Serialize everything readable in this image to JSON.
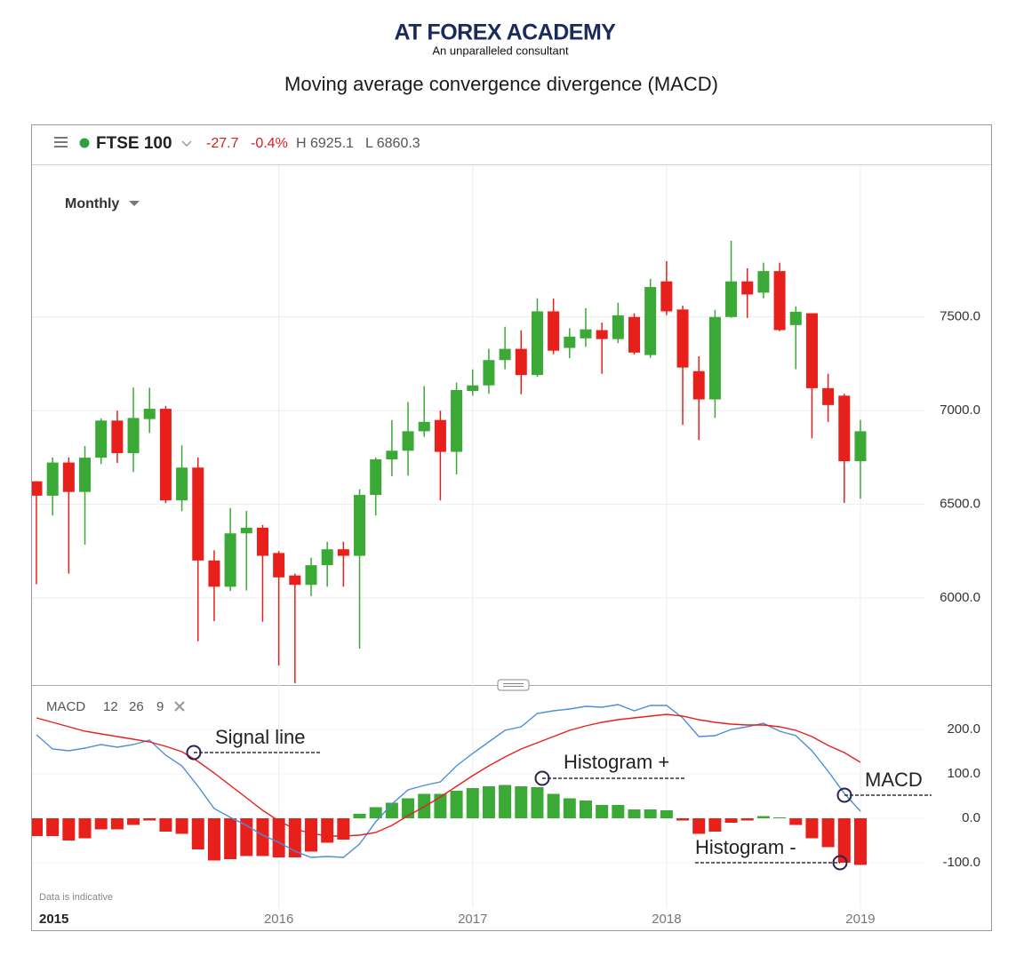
{
  "header": {
    "brand": "AT FOREX ACADEMY",
    "tagline": "An unparalleled consultant",
    "title": "Moving average convergence divergence (MACD)"
  },
  "chart_data": [
    {
      "type": "candlestick",
      "symbol": "FTSE 100",
      "change": "-27.7",
      "change_pct": "-0.4%",
      "day_high": "H 6925.1",
      "day_low": "L 6860.3",
      "period": "Monthly",
      "categories": [
        "2015",
        null,
        null,
        null,
        null,
        null,
        null,
        null,
        null,
        null,
        null,
        null,
        null,
        null,
        null,
        "2016",
        null,
        null,
        null,
        null,
        null,
        null,
        null,
        null,
        null,
        null,
        null,
        "2017",
        null,
        null,
        null,
        null,
        null,
        null,
        null,
        null,
        null,
        null,
        null,
        "2018",
        null,
        null,
        null,
        null,
        null,
        null,
        null,
        null,
        null,
        null,
        null,
        "2019"
      ],
      "open": [
        6623,
        6546,
        6723,
        6566,
        6749,
        6947,
        6773,
        6955,
        7010,
        6521,
        6696,
        6200,
        6060,
        6345,
        6375,
        6240,
        6120,
        6070,
        6175,
        6260,
        6225,
        6550,
        6740,
        6786,
        6890,
        6950,
        6780,
        7105,
        7135,
        7270,
        7330,
        7190,
        7530,
        7335,
        7386,
        7430,
        7382,
        7500,
        7297,
        7690,
        7540,
        7211,
        7060,
        7500,
        7690,
        7630,
        7745,
        7457,
        7520,
        7120,
        7080,
        6730
      ],
      "high": [
        6623,
        6750,
        6750,
        6811,
        6958,
        7000,
        7123,
        7122,
        7025,
        6815,
        6750,
        6254,
        6480,
        6465,
        6390,
        6250,
        6130,
        6215,
        6300,
        6300,
        6580,
        6750,
        6950,
        7046,
        7131,
        7000,
        7150,
        7220,
        7330,
        7448,
        7429,
        7600,
        7599,
        7440,
        7547,
        7470,
        7576,
        7520,
        7703,
        7798,
        7560,
        7290,
        7538,
        7907,
        7760,
        7790,
        7790,
        7557,
        7520,
        7197,
        7090,
        6950
      ],
      "low": [
        6073,
        6440,
        6130,
        6285,
        6715,
        6721,
        6672,
        6881,
        6506,
        6463,
        5769,
        5876,
        6038,
        6040,
        5873,
        5640,
        5545,
        6010,
        6060,
        6060,
        5730,
        6440,
        6650,
        6653,
        6860,
        6521,
        6660,
        7080,
        7090,
        7221,
        7088,
        7180,
        7301,
        7280,
        7340,
        7197,
        7360,
        7300,
        7282,
        7510,
        6923,
        6843,
        6961,
        7495,
        7495,
        7600,
        7424,
        7221,
        6852,
        6940,
        6507,
        6530
      ],
      "close": [
        6546,
        6723,
        6566,
        6749,
        6947,
        6773,
        6961,
        7010,
        6521,
        6696,
        6200,
        6060,
        6345,
        6375,
        6225,
        6110,
        6070,
        6175,
        6260,
        6225,
        6550,
        6740,
        6786,
        6890,
        6940,
        6780,
        7110,
        7135,
        7270,
        7330,
        7190,
        7530,
        7320,
        7395,
        7434,
        7382,
        7509,
        7310,
        7660,
        7530,
        7230,
        7060,
        7500,
        7690,
        7620,
        7745,
        7430,
        7528,
        7120,
        7030,
        6730,
        6890
      ],
      "up_color": "#3aa935",
      "down_color": "#e8201c",
      "ylim": [
        5540,
        8310
      ],
      "yticks": [
        {
          "value": 6000,
          "label": "6000.0"
        },
        {
          "value": 6500,
          "label": "6500.0"
        },
        {
          "value": 7000,
          "label": "7000.0"
        },
        {
          "value": 7500,
          "label": "7500.0"
        }
      ],
      "grid": true
    },
    {
      "type": "macd",
      "indicator": "MACD",
      "params": [
        12,
        26,
        9
      ],
      "note": "Data is indicative",
      "series": [
        {
          "name": "MACD",
          "color": "#4a8fd8",
          "values": [
            188,
            156,
            152,
            158,
            166,
            160,
            166,
            176,
            142,
            118,
            72,
            22,
            2,
            -16,
            -38,
            -54,
            -74,
            -88,
            -86,
            -88,
            -58,
            -8,
            32,
            64,
            74,
            82,
            118,
            146,
            172,
            198,
            206,
            236,
            242,
            246,
            252,
            250,
            256,
            242,
            254,
            254,
            226,
            184,
            186,
            200,
            206,
            214,
            196,
            186,
            152,
            106,
            56,
            16
          ]
        },
        {
          "name": "Signal line",
          "color": "#e8201c",
          "values": [
            226,
            216,
            206,
            196,
            190,
            184,
            178,
            172,
            162,
            150,
            128,
            102,
            74,
            46,
            18,
            -6,
            -24,
            -34,
            -40,
            -40,
            -38,
            -32,
            -16,
            6,
            26,
            48,
            72,
            96,
            118,
            138,
            156,
            170,
            184,
            198,
            208,
            216,
            222,
            226,
            230,
            234,
            230,
            222,
            216,
            212,
            210,
            210,
            206,
            198,
            184,
            164,
            148,
            126
          ]
        }
      ],
      "histogram": {
        "labels": [
          "Histogram +",
          "Histogram -"
        ],
        "up_color": "#3aa935",
        "down_color": "#e8201c",
        "values": [
          -40,
          -40,
          -50,
          -45,
          -25,
          -25,
          -15,
          -5,
          -30,
          -35,
          -70,
          -95,
          -92,
          -85,
          -85,
          -88,
          -88,
          -75,
          -55,
          -48,
          10,
          25,
          35,
          45,
          55,
          55,
          62,
          68,
          72,
          75,
          72,
          70,
          55,
          45,
          40,
          30,
          30,
          20,
          20,
          18,
          -5,
          -35,
          -30,
          -10,
          -5,
          5,
          2,
          -15,
          -45,
          -65,
          -100,
          -105
        ]
      },
      "ylim": [
        -158,
        298
      ],
      "yticks": [
        {
          "value": -100,
          "label": "-100.0"
        },
        {
          "value": 0,
          "label": "0.0"
        },
        {
          "value": 100,
          "label": "100.0"
        },
        {
          "value": 200,
          "label": "200.0"
        }
      ]
    }
  ]
}
